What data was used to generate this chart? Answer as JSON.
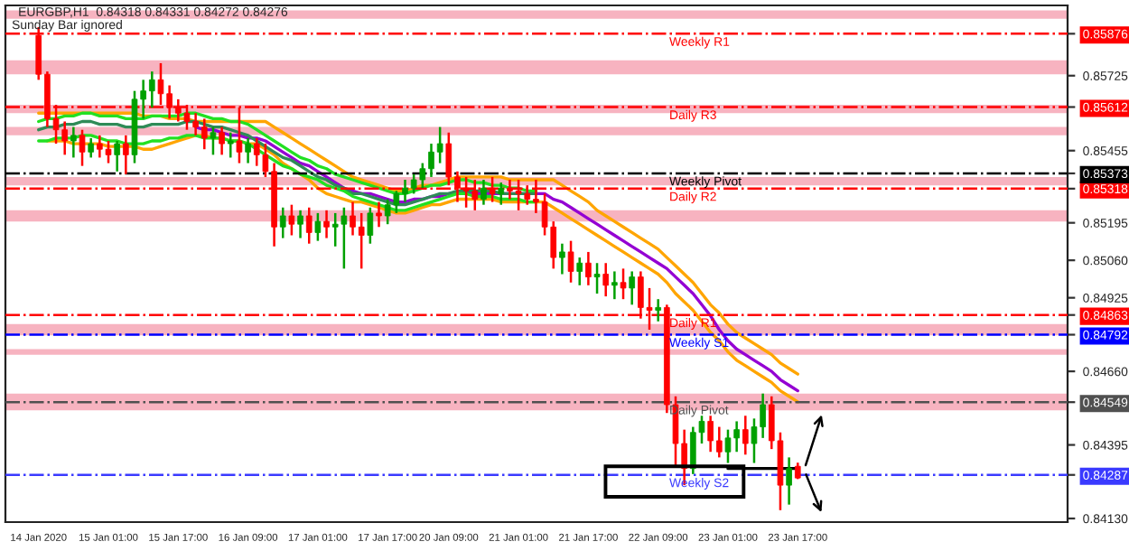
{
  "chart_data": {
    "type": "candlestick",
    "title": "EURGBP,H1  0.84318 0.84331 0.84272 0.84276",
    "subtitle": "Sunday Bar ignored",
    "categories": [
      "14 Jan 2020",
      null,
      null,
      null,
      null,
      null,
      null,
      null,
      "15 Jan 01:00",
      null,
      null,
      null,
      null,
      null,
      null,
      null,
      "15 Jan 17:00",
      null,
      null,
      null,
      null,
      null,
      null,
      null,
      "16 Jan 09:00",
      null,
      null,
      null,
      null,
      null,
      null,
      null,
      "17 Jan 01:00",
      null,
      null,
      null,
      null,
      null,
      null,
      null,
      "17 Jan 17:00",
      null,
      null,
      null,
      null,
      null,
      null,
      "20 Jan 09:00",
      null,
      null,
      null,
      null,
      null,
      null,
      null,
      "21 Jan 01:00",
      null,
      null,
      null,
      null,
      null,
      null,
      null,
      "21 Jan 17:00",
      null,
      null,
      null,
      null,
      null,
      null,
      null,
      "22 Jan 09:00",
      null,
      null,
      null,
      null,
      null,
      null,
      null,
      "23 Jan 01:00",
      null,
      null,
      null,
      null,
      null,
      null,
      null,
      "23 Jan 17:00"
    ],
    "ohlc": [
      [
        0.8587,
        0.859,
        0.8571,
        0.8573
      ],
      [
        0.8573,
        0.8574,
        0.8554,
        0.8557
      ],
      [
        0.8557,
        0.8562,
        0.8548,
        0.8553
      ],
      [
        0.8553,
        0.8556,
        0.8544,
        0.8549
      ],
      [
        0.8549,
        0.8554,
        0.8543,
        0.8551
      ],
      [
        0.8551,
        0.8553,
        0.854,
        0.8545
      ],
      [
        0.8545,
        0.855,
        0.8543,
        0.8548
      ],
      [
        0.8548,
        0.8551,
        0.8543,
        0.8546
      ],
      [
        0.8546,
        0.8549,
        0.8541,
        0.8544
      ],
      [
        0.8544,
        0.8549,
        0.8538,
        0.8548
      ],
      [
        0.8548,
        0.8551,
        0.8537,
        0.8544
      ],
      [
        0.8544,
        0.8567,
        0.8541,
        0.8564
      ],
      [
        0.8564,
        0.8571,
        0.8557,
        0.8567
      ],
      [
        0.8567,
        0.8574,
        0.8561,
        0.8571
      ],
      [
        0.8571,
        0.8577,
        0.8562,
        0.8566
      ],
      [
        0.8566,
        0.8569,
        0.8557,
        0.8561
      ],
      [
        0.8561,
        0.8564,
        0.8556,
        0.8559
      ],
      [
        0.8559,
        0.8562,
        0.8553,
        0.8556
      ],
      [
        0.8556,
        0.8559,
        0.8551,
        0.8554
      ],
      [
        0.8554,
        0.8557,
        0.8546,
        0.855
      ],
      [
        0.855,
        0.8554,
        0.8544,
        0.8552
      ],
      [
        0.8552,
        0.8554,
        0.8544,
        0.8548
      ],
      [
        0.8548,
        0.8552,
        0.8543,
        0.8549
      ],
      [
        0.8549,
        0.8561,
        0.8541,
        0.8545
      ],
      [
        0.8545,
        0.855,
        0.8541,
        0.8548
      ],
      [
        0.8548,
        0.855,
        0.854,
        0.8544
      ],
      [
        0.8544,
        0.8548,
        0.8536,
        0.8538
      ],
      [
        0.8538,
        0.8541,
        0.8511,
        0.8518
      ],
      [
        0.8518,
        0.8525,
        0.8514,
        0.8522
      ],
      [
        0.8522,
        0.8526,
        0.8515,
        0.8519
      ],
      [
        0.8519,
        0.8524,
        0.8514,
        0.8522
      ],
      [
        0.8522,
        0.8525,
        0.8512,
        0.8516
      ],
      [
        0.8516,
        0.8523,
        0.8513,
        0.852
      ],
      [
        0.852,
        0.8524,
        0.8514,
        0.8518
      ],
      [
        0.8518,
        0.8523,
        0.8511,
        0.8519
      ],
      [
        0.8519,
        0.8525,
        0.8503,
        0.8522
      ],
      [
        0.8522,
        0.8527,
        0.8515,
        0.8518
      ],
      [
        0.8518,
        0.8523,
        0.8503,
        0.8515
      ],
      [
        0.8515,
        0.8525,
        0.8512,
        0.8523
      ],
      [
        0.8523,
        0.8527,
        0.8518,
        0.8522
      ],
      [
        0.8522,
        0.8528,
        0.8519,
        0.8526
      ],
      [
        0.8526,
        0.8531,
        0.8523,
        0.853
      ],
      [
        0.853,
        0.8535,
        0.8527,
        0.8532
      ],
      [
        0.8532,
        0.8537,
        0.853,
        0.8535
      ],
      [
        0.8535,
        0.8541,
        0.8532,
        0.8539
      ],
      [
        0.8539,
        0.8548,
        0.8536,
        0.8545
      ],
      [
        0.8545,
        0.8554,
        0.8541,
        0.8548
      ],
      [
        0.8548,
        0.8552,
        0.8533,
        0.8536
      ],
      [
        0.8536,
        0.8538,
        0.8527,
        0.8532
      ],
      [
        0.8532,
        0.8536,
        0.8525,
        0.8531
      ],
      [
        0.8531,
        0.8535,
        0.8524,
        0.8528
      ],
      [
        0.8528,
        0.8535,
        0.8526,
        0.8532
      ],
      [
        0.8532,
        0.8536,
        0.8527,
        0.853
      ],
      [
        0.853,
        0.8534,
        0.8526,
        0.8532
      ],
      [
        0.8532,
        0.8535,
        0.8528,
        0.8531
      ],
      [
        0.8531,
        0.8535,
        0.8524,
        0.853
      ],
      [
        0.853,
        0.8533,
        0.8526,
        0.8528
      ],
      [
        0.8528,
        0.8535,
        0.8523,
        0.8527
      ],
      [
        0.8527,
        0.853,
        0.8515,
        0.8518
      ],
      [
        0.8518,
        0.852,
        0.8503,
        0.8507
      ],
      [
        0.8507,
        0.8512,
        0.8501,
        0.8509
      ],
      [
        0.8509,
        0.8513,
        0.8498,
        0.8502
      ],
      [
        0.8502,
        0.8507,
        0.8497,
        0.8505
      ],
      [
        0.8505,
        0.8509,
        0.8497,
        0.85
      ],
      [
        0.85,
        0.8505,
        0.8494,
        0.8501
      ],
      [
        0.8501,
        0.8505,
        0.8493,
        0.8497
      ],
      [
        0.8497,
        0.8502,
        0.8492,
        0.8498
      ],
      [
        0.8498,
        0.8503,
        0.8492,
        0.8496
      ],
      [
        0.8496,
        0.8502,
        0.849,
        0.85
      ],
      [
        0.85,
        0.8502,
        0.8485,
        0.8489
      ],
      [
        0.8489,
        0.8496,
        0.8481,
        0.8488
      ],
      [
        0.8488,
        0.8492,
        0.8484,
        0.8489
      ],
      [
        0.8489,
        0.849,
        0.8451,
        0.8454
      ],
      [
        0.8454,
        0.8457,
        0.8432,
        0.844
      ],
      [
        0.844,
        0.8445,
        0.8425,
        0.8431
      ],
      [
        0.8431,
        0.8446,
        0.8429,
        0.8444
      ],
      [
        0.8444,
        0.845,
        0.844,
        0.8448
      ],
      [
        0.8448,
        0.845,
        0.8437,
        0.8441
      ],
      [
        0.8441,
        0.8446,
        0.8435,
        0.8437
      ],
      [
        0.8437,
        0.8445,
        0.8433,
        0.8442
      ],
      [
        0.8442,
        0.8448,
        0.8437,
        0.8445
      ],
      [
        0.8445,
        0.845,
        0.8436,
        0.844
      ],
      [
        0.844,
        0.8449,
        0.8433,
        0.8446
      ],
      [
        0.8446,
        0.8458,
        0.8442,
        0.8454
      ],
      [
        0.8454,
        0.8457,
        0.8438,
        0.8441
      ],
      [
        0.8441,
        0.8444,
        0.8416,
        0.8425
      ],
      [
        0.8425,
        0.8435,
        0.8418,
        0.8431
      ],
      [
        0.84318,
        0.84331,
        0.84272,
        0.84276
      ]
    ],
    "colors": [
      "#ff0000",
      "#ff0000",
      "#ff0000",
      "#ff0000",
      "#00a000",
      "#ff0000",
      "#00a000",
      "#ff0000",
      "#ff0000",
      "#00a000",
      "#ff0000",
      "#00a000",
      "#00a000",
      "#00a000",
      "#ff0000",
      "#ff0000",
      "#ff0000",
      "#ff0000",
      "#ff0000",
      "#ff0000",
      "#00a000",
      "#ff0000",
      "#00a000",
      "#ff0000",
      "#00a000",
      "#ff0000",
      "#ff0000",
      "#ff0000",
      "#00a000",
      "#ff0000",
      "#00a000",
      "#ff0000",
      "#00a000",
      "#ff0000",
      "#00a000",
      "#00a000",
      "#ff0000",
      "#ff0000",
      "#00a000",
      "#ff0000",
      "#00a000",
      "#00a000",
      "#00a000",
      "#00a000",
      "#00a000",
      "#00a000",
      "#00a000",
      "#ff0000",
      "#ff0000",
      "#ff0000",
      "#ff0000",
      "#00a000",
      "#ff0000",
      "#00a000",
      "#ff0000",
      "#ff0000",
      "#ff0000",
      "#ff0000",
      "#ff0000",
      "#ff0000",
      "#00a000",
      "#ff0000",
      "#00a000",
      "#ff0000",
      "#00a000",
      "#ff0000",
      "#00a000",
      "#ff0000",
      "#00a000",
      "#ff0000",
      "#ff0000",
      "#00a000",
      "#ff0000",
      "#ff0000",
      "#ff0000",
      "#00a000",
      "#00a000",
      "#ff0000",
      "#ff0000",
      "#00a000",
      "#00a000",
      "#ff0000",
      "#00a000",
      "#00a000",
      "#ff0000",
      "#ff0000",
      "#00a000",
      "#ff0000"
    ],
    "series": [
      {
        "type": "line",
        "color": "#ffa500",
        "values": [
          0.8559,
          0.8559,
          0.8559,
          0.8559,
          0.8559,
          0.8559,
          0.8559,
          0.8559,
          0.8559,
          0.8559,
          0.8559,
          0.8559,
          0.8558,
          0.8558,
          0.8558,
          0.8557,
          0.8557,
          0.8557,
          0.8556,
          0.8556,
          0.8556,
          0.8556,
          0.8556,
          0.8556,
          0.8556,
          0.8556,
          0.8556,
          0.8554,
          0.8552,
          0.855,
          0.8548,
          0.8546,
          0.8544,
          0.8542,
          0.854,
          0.8538,
          0.8536,
          0.8535,
          0.8534,
          0.8533,
          0.8532,
          0.8531,
          0.8531,
          0.8532,
          0.8533,
          0.8533,
          0.8534,
          0.8535,
          0.8536,
          0.8536,
          0.8536,
          0.8536,
          0.8536,
          0.8536,
          0.8535,
          0.8535,
          0.8535,
          0.8535,
          0.8535,
          0.8535,
          0.8533,
          0.8531,
          0.8529,
          0.8527,
          0.8524,
          0.8522,
          0.852,
          0.8518,
          0.8516,
          0.8514,
          0.8512,
          0.851,
          0.8507,
          0.8504,
          0.8501,
          0.8498,
          0.8494,
          0.849,
          0.8487,
          0.8483,
          0.848,
          0.8478,
          0.8476,
          0.8474,
          0.8472,
          0.8469,
          0.8467,
          0.8465
        ]
      },
      {
        "type": "line",
        "color": "#ffa500",
        "values": [
          null,
          0.8549,
          0.8549,
          0.8549,
          0.8548,
          0.8548,
          0.8548,
          0.8548,
          0.8547,
          0.8547,
          0.8547,
          0.8547,
          0.8546,
          0.8546,
          0.8547,
          0.8548,
          0.8549,
          0.855,
          0.8551,
          0.8551,
          0.855,
          0.855,
          0.8549,
          0.8549,
          0.8548,
          0.8548,
          0.8546,
          0.8544,
          0.8541,
          0.8539,
          0.8537,
          0.8535,
          0.8532,
          0.853,
          0.8529,
          0.8528,
          0.8527,
          0.8527,
          0.8526,
          0.8525,
          0.8524,
          0.8523,
          0.8523,
          0.8524,
          0.8525,
          0.8526,
          0.8526,
          0.8527,
          0.8528,
          0.8528,
          0.8528,
          0.8528,
          0.8528,
          0.8527,
          0.8527,
          0.8527,
          0.8527,
          0.8527,
          0.8527,
          0.8525,
          0.8523,
          0.8521,
          0.8519,
          0.8517,
          0.8515,
          0.8513,
          0.8511,
          0.8509,
          0.8507,
          0.8505,
          0.8503,
          0.8501,
          0.8498,
          0.8494,
          0.8491,
          0.8488,
          0.8484,
          0.848,
          0.8477,
          0.8473,
          0.847,
          0.8468,
          0.8466,
          0.8464,
          0.8462,
          0.8459,
          0.8457,
          0.8455
        ]
      },
      {
        "type": "line",
        "color": "#9400d3",
        "values": [
          null,
          null,
          null,
          null,
          null,
          null,
          null,
          null,
          null,
          null,
          null,
          null,
          null,
          null,
          null,
          null,
          null,
          null,
          0.8554,
          0.8553,
          0.8553,
          0.8552,
          0.8551,
          0.8551,
          0.855,
          0.855,
          0.8549,
          0.8547,
          0.8545,
          0.8543,
          0.8541,
          0.854,
          0.8538,
          0.8536,
          0.8534,
          0.8532,
          0.8531,
          0.853,
          0.853,
          0.8529,
          0.8528,
          0.8527,
          0.8527,
          0.8528,
          0.8528,
          0.8529,
          0.8529,
          0.853,
          0.853,
          0.853,
          0.853,
          0.853,
          0.853,
          0.853,
          0.853,
          0.853,
          0.853,
          0.853,
          0.853,
          0.8528,
          0.8527,
          0.8525,
          0.8523,
          0.8521,
          0.8519,
          0.8517,
          0.8515,
          0.8513,
          0.8511,
          0.8509,
          0.8507,
          0.8505,
          0.8503,
          0.85,
          0.8497,
          0.8494,
          0.849,
          0.8486,
          0.8481,
          0.8477,
          0.8474,
          0.8472,
          0.847,
          0.8468,
          0.8466,
          0.8463,
          0.8461,
          0.8459
        ]
      },
      {
        "type": "line",
        "color": "#22e022",
        "values": [
          0.8556,
          0.8557,
          0.8557,
          0.8558,
          0.8558,
          0.8559,
          0.8559,
          0.8558,
          0.8558,
          0.8558,
          0.8557,
          0.8557,
          0.8557,
          0.8558,
          0.8558,
          0.8558,
          0.8558,
          0.8559,
          0.8559,
          0.8558,
          0.8557,
          0.8557,
          0.8556,
          0.8556,
          0.8555,
          0.8553,
          0.8551,
          0.8549,
          0.8547,
          0.8545,
          0.8543,
          0.8542,
          0.854,
          0.8539,
          0.8537,
          0.8536,
          0.8535,
          0.8534,
          0.8533,
          0.8532,
          0.8531,
          0.853,
          0.853,
          0.8531,
          0.8532,
          0.8533,
          0.8533,
          0.8534,
          0.8535,
          0.8535,
          0.8534,
          0.8534,
          0.8533,
          0.8533,
          0.8532,
          0.8532,
          0.8531,
          0.8531,
          null,
          null,
          null,
          null,
          null,
          null,
          null,
          null,
          null,
          null,
          null,
          null,
          null,
          null,
          null,
          null,
          null,
          null,
          null,
          null,
          null,
          null,
          null,
          null,
          null,
          null,
          null,
          null,
          null,
          null
        ]
      },
      {
        "type": "line",
        "color": "#2e8b57",
        "values": [
          0.8553,
          0.8554,
          0.8554,
          0.8555,
          0.8555,
          0.8556,
          0.8556,
          0.8555,
          0.8555,
          0.8555,
          0.8554,
          0.8554,
          0.8554,
          0.8555,
          0.8555,
          0.8555,
          0.8555,
          0.8556,
          0.8556,
          0.8555,
          0.8554,
          0.8554,
          0.8553,
          0.8552,
          0.8551,
          0.8549,
          0.8547,
          0.8545,
          0.8543,
          0.8542,
          0.854,
          0.8538,
          0.8536,
          0.8535,
          0.8533,
          0.8532,
          0.853,
          0.853,
          0.8529,
          0.8528,
          0.8527,
          0.8526,
          0.8526,
          0.8527,
          0.8528,
          0.8529,
          0.853,
          0.853,
          0.8531,
          0.8531,
          0.8531,
          0.8531,
          0.8531,
          0.853,
          0.853,
          0.853,
          0.853,
          0.853,
          null,
          null,
          null,
          null,
          null,
          null,
          null,
          null,
          null,
          null,
          null,
          null,
          null,
          null,
          null,
          null,
          null,
          null,
          null,
          null,
          null,
          null,
          null,
          null,
          null,
          null,
          null,
          null,
          null,
          null
        ]
      },
      {
        "type": "line",
        "color": "#22e022",
        "values": [
          0.8549,
          0.8549,
          0.855,
          0.855,
          0.855,
          0.8551,
          0.8551,
          0.855,
          0.8549,
          0.8549,
          0.8548,
          0.8548,
          0.8548,
          0.8549,
          0.8549,
          0.855,
          0.855,
          0.8551,
          0.8551,
          0.855,
          0.855,
          0.855,
          0.8549,
          0.8549,
          0.8548,
          0.8546,
          0.8544,
          0.8542,
          0.854,
          0.8539,
          0.8537,
          0.8536,
          0.8535,
          0.8533,
          0.8532,
          0.8531,
          0.8529,
          0.8528,
          0.8527,
          0.8526,
          0.8525,
          0.8524,
          0.8524,
          0.8525,
          0.8526,
          0.8527,
          0.8528,
          0.8529,
          0.853,
          0.853,
          0.8529,
          0.8529,
          0.8529,
          0.8528,
          0.8528,
          0.8528,
          0.8527,
          0.8527,
          null,
          null,
          null,
          null,
          null,
          null,
          null,
          null,
          null,
          null,
          null,
          null,
          null,
          null,
          null,
          null,
          null,
          null,
          null,
          null,
          null,
          null,
          null,
          null,
          null,
          null,
          null,
          null,
          null,
          null
        ]
      },
      {
        "type": "line",
        "color": "#000000",
        "values": [
          null,
          null,
          null,
          null,
          null,
          null,
          null,
          null,
          null,
          null,
          null,
          null,
          null,
          null,
          null,
          null,
          null,
          null,
          null,
          null,
          null,
          null,
          null,
          null,
          null,
          null,
          null,
          null,
          null,
          null,
          null,
          null,
          null,
          null,
          null,
          null,
          null,
          null,
          null,
          null,
          null,
          null,
          null,
          null,
          null,
          null,
          null,
          null,
          null,
          null,
          null,
          null,
          null,
          null,
          null,
          null,
          null,
          null,
          null,
          null,
          null,
          null,
          null,
          null,
          null,
          null,
          null,
          null,
          null,
          null,
          null,
          null,
          null,
          null,
          null,
          null,
          null,
          null,
          null,
          0.8431,
          0.8431,
          0.8431,
          0.8431,
          0.8431,
          0.8431,
          0.8431,
          0.8431,
          0.8431
        ]
      }
    ],
    "ref_lines": [
      {
        "axis": "y",
        "value": 0.85876,
        "label": "Weekly R1",
        "color": "#ff0000",
        "line_style": "dashdot"
      },
      {
        "axis": "y",
        "value": 0.85612,
        "label": "Daily R3",
        "color": "#ff0000",
        "line_style": "dashdot"
      },
      {
        "axis": "y",
        "value": 0.85373,
        "label": "Weekly Pivot",
        "color": "#000000",
        "line_style": "dashdot"
      },
      {
        "axis": "y",
        "value": 0.85318,
        "label": "Daily R2",
        "color": "#ff0000",
        "line_style": "dashdot"
      },
      {
        "axis": "y",
        "value": 0.84863,
        "label": "Daily R1",
        "color": "#ff0000",
        "line_style": "dashdot"
      },
      {
        "axis": "y",
        "value": 0.84792,
        "label": "Weekly S1",
        "color": "#0000ff",
        "line_style": "dashdot"
      },
      {
        "axis": "y",
        "value": 0.84549,
        "label": "Daily Pivot",
        "color": "#505050",
        "line_style": "dashdot"
      },
      {
        "axis": "y",
        "value": 0.84287,
        "label": "Weekly S2",
        "color": "#3a3aff",
        "line_style": "dashdot"
      }
    ],
    "bands": [
      {
        "axis": "y",
        "from": 0.8593,
        "to": 0.8596,
        "color": "#f7b3c0"
      },
      {
        "axis": "y",
        "from": 0.8573,
        "to": 0.8578,
        "color": "#f7b3c0"
      },
      {
        "axis": "y",
        "from": 0.8559,
        "to": 0.8562,
        "color": "#f7b3c0"
      },
      {
        "axis": "y",
        "from": 0.8551,
        "to": 0.8554,
        "color": "#f7b3c0"
      },
      {
        "axis": "y",
        "from": 0.8533,
        "to": 0.8536,
        "color": "#f7b3c0"
      },
      {
        "axis": "y",
        "from": 0.852,
        "to": 0.8524,
        "color": "#f7b3c0"
      },
      {
        "axis": "y",
        "from": 0.8479,
        "to": 0.8483,
        "color": "#f7b3c0"
      },
      {
        "axis": "y",
        "from": 0.8472,
        "to": 0.8474,
        "color": "#f7b3c0"
      },
      {
        "axis": "y",
        "from": 0.8452,
        "to": 0.8458,
        "color": "#f7b3c0"
      }
    ],
    "ylim": [
      0.84117,
      0.85978
    ],
    "yticks": [
      {
        "value": 0.8413,
        "label": "0.84130"
      },
      {
        "value": 0.84287,
        "label": "0.84287"
      },
      {
        "value": 0.84395,
        "label": "0.84395"
      },
      {
        "value": 0.84549,
        "label": "0.84549"
      },
      {
        "value": 0.8466,
        "label": "0.84660"
      },
      {
        "value": 0.84792,
        "label": "0.84792"
      },
      {
        "value": 0.84863,
        "label": "0.84863"
      },
      {
        "value": 0.84925,
        "label": "0.84925"
      },
      {
        "value": 0.8506,
        "label": "0.85060"
      },
      {
        "value": 0.85195,
        "label": "0.85195"
      },
      {
        "value": 0.85318,
        "label": "0.85318"
      },
      {
        "value": 0.85373,
        "label": "0.85373"
      },
      {
        "value": 0.85455,
        "label": "0.85455"
      },
      {
        "value": 0.85612,
        "label": "0.85612"
      },
      {
        "value": 0.85725,
        "label": "0.85725"
      },
      {
        "value": 0.85876,
        "label": "0.85876"
      }
    ]
  }
}
